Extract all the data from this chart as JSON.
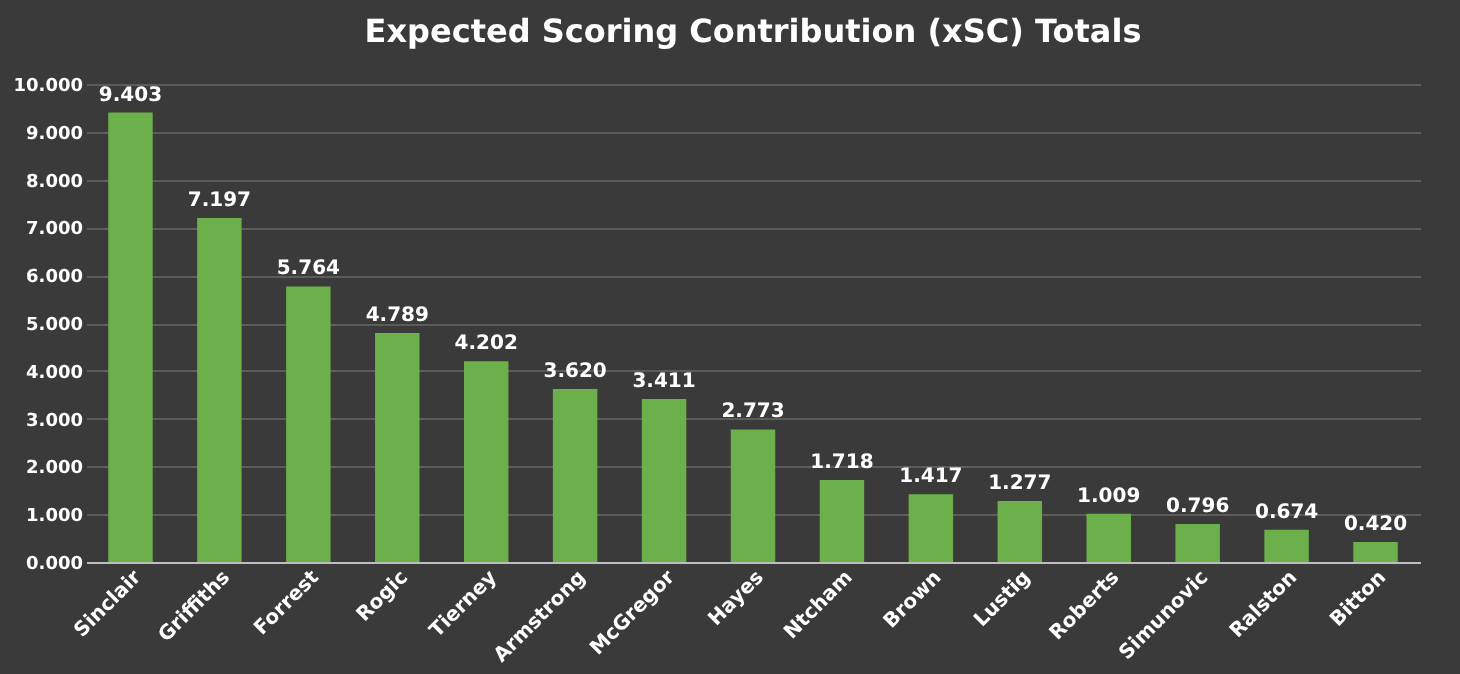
{
  "chart_data": {
    "type": "bar",
    "title": "Expected Scoring Contribution (xSC) Totals",
    "categories": [
      "Sinclair",
      "Griffiths",
      "Forrest",
      "Rogic",
      "Tierney",
      "Armstrong",
      "McGregor",
      "Hayes",
      "Ntcham",
      "Brown",
      "Lustig",
      "Roberts",
      "Simunovic",
      "Ralston",
      "Bitton"
    ],
    "values": [
      9.403,
      7.197,
      5.764,
      4.789,
      4.202,
      3.62,
      3.411,
      2.773,
      1.718,
      1.417,
      1.277,
      1.009,
      0.796,
      0.674,
      0.42
    ],
    "value_labels": [
      "9.403",
      "7.197",
      "5.764",
      "4.789",
      "4.202",
      "3.620",
      "3.411",
      "2.773",
      "1.718",
      "1.417",
      "1.277",
      "1.009",
      "0.796",
      "0.674",
      "0.420"
    ],
    "color": "#6bb04a",
    "ylim": [
      0,
      10
    ],
    "yticks": [
      {
        "value": 0,
        "label": "0.000"
      },
      {
        "value": 1,
        "label": "1.000"
      },
      {
        "value": 2,
        "label": "2.000"
      },
      {
        "value": 3,
        "label": "3.000"
      },
      {
        "value": 4,
        "label": "4.000"
      },
      {
        "value": 5,
        "label": "5.000"
      },
      {
        "value": 6,
        "label": "6.000"
      },
      {
        "value": 7,
        "label": "7.000"
      },
      {
        "value": 8,
        "label": "8.000"
      },
      {
        "value": 9,
        "label": "9.000"
      },
      {
        "value": 10,
        "label": "10.000"
      }
    ],
    "grid": "y"
  }
}
